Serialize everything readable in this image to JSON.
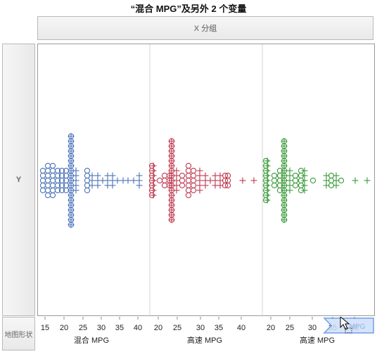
{
  "title": "“混合 MPG”及另外 2 个变量",
  "x_group_label": "X 分组",
  "y_group_label": "Y",
  "map_shape_label": "地图形状",
  "drop_zone_text": "MPG",
  "panels": [
    {
      "label": "混合 MPG",
      "ticks": [
        "15",
        "20",
        "25",
        "30",
        "35",
        "40"
      ],
      "color": "#4a72b8"
    },
    {
      "label": "高速 MPG",
      "ticks": [
        "20",
        "25",
        "30",
        "35",
        "40"
      ],
      "color": "#c0394f"
    },
    {
      "label": "高速 MPG",
      "ticks": [
        "20",
        "25",
        "30",
        "35",
        "40"
      ],
      "color": "#3a9a3a"
    }
  ]
}
